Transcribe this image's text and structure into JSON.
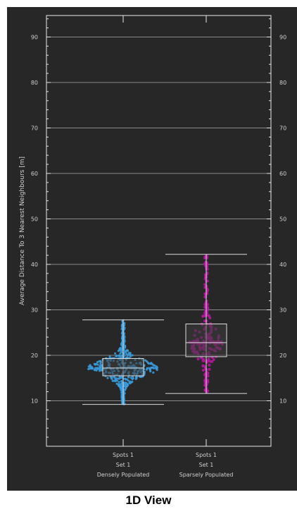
{
  "caption": "1D View",
  "chart_data": {
    "type": "box",
    "ylabel": "Average Distance To 3 Nearest Neighbours [m]",
    "ylim": [
      0,
      95
    ],
    "yticks": [
      10,
      20,
      30,
      40,
      50,
      60,
      70,
      80,
      90
    ],
    "grid": true,
    "categories": [
      {
        "lines": [
          "Spots 1",
          "Set 1",
          "Densely Populated"
        ]
      },
      {
        "lines": [
          "Spots 1",
          "Set 1",
          "Sparsely Populated"
        ]
      }
    ],
    "series": [
      {
        "color": "#3a9ad9",
        "min": 9.2,
        "q1": 15.5,
        "median": 17.2,
        "q3": 19.3,
        "max": 27.8
      },
      {
        "color": "#b0179b",
        "min": 11.6,
        "q1": 19.7,
        "median": 22.8,
        "q3": 26.9,
        "max": 42.2
      }
    ],
    "colors": {
      "background": "#272727",
      "axis": "#e8e8e8",
      "grid": "#8a8a8a",
      "box_fill": "#3d3d3d",
      "text": "#cfcfcf"
    }
  }
}
